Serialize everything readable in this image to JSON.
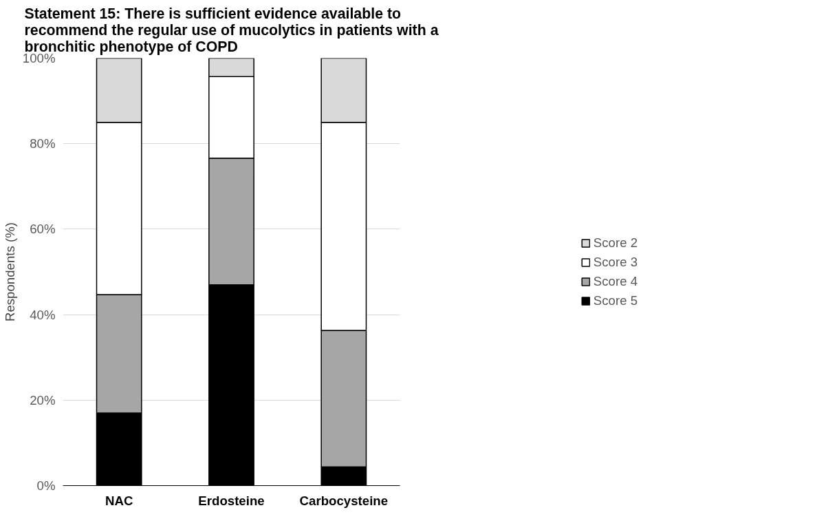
{
  "chart_data": {
    "type": "bar",
    "title": "Statement 15: There is sufficient evidence available to recommend the regular use of mucolytics in patients with a bronchitic phenotype of COPD",
    "ylabel": "Respondents (%)",
    "categories": [
      "NAC",
      "Erdosteine",
      "Carbocysteine"
    ],
    "stacked": true,
    "series": [
      {
        "name": "Score 5",
        "color": "#000000",
        "values": [
          17,
          47,
          4.4
        ]
      },
      {
        "name": "Score 4",
        "color": "#a6a6a6",
        "values": [
          27.7,
          29.6,
          31.9
        ]
      },
      {
        "name": "Score 3",
        "color": "#ffffff",
        "values": [
          40.3,
          19.1,
          48.7
        ]
      },
      {
        "name": "Score 2",
        "color": "#d9d9d9",
        "values": [
          15,
          4.3,
          15
        ]
      }
    ],
    "ylim": [
      0,
      100
    ],
    "yticks": [
      {
        "value": 0,
        "label": "0%"
      },
      {
        "value": 20,
        "label": "20%"
      },
      {
        "value": 40,
        "label": "40%"
      },
      {
        "value": 60,
        "label": "60%"
      },
      {
        "value": 80,
        "label": "80%"
      },
      {
        "value": 100,
        "label": "100%"
      }
    ],
    "grid": "y",
    "legend": "right"
  }
}
